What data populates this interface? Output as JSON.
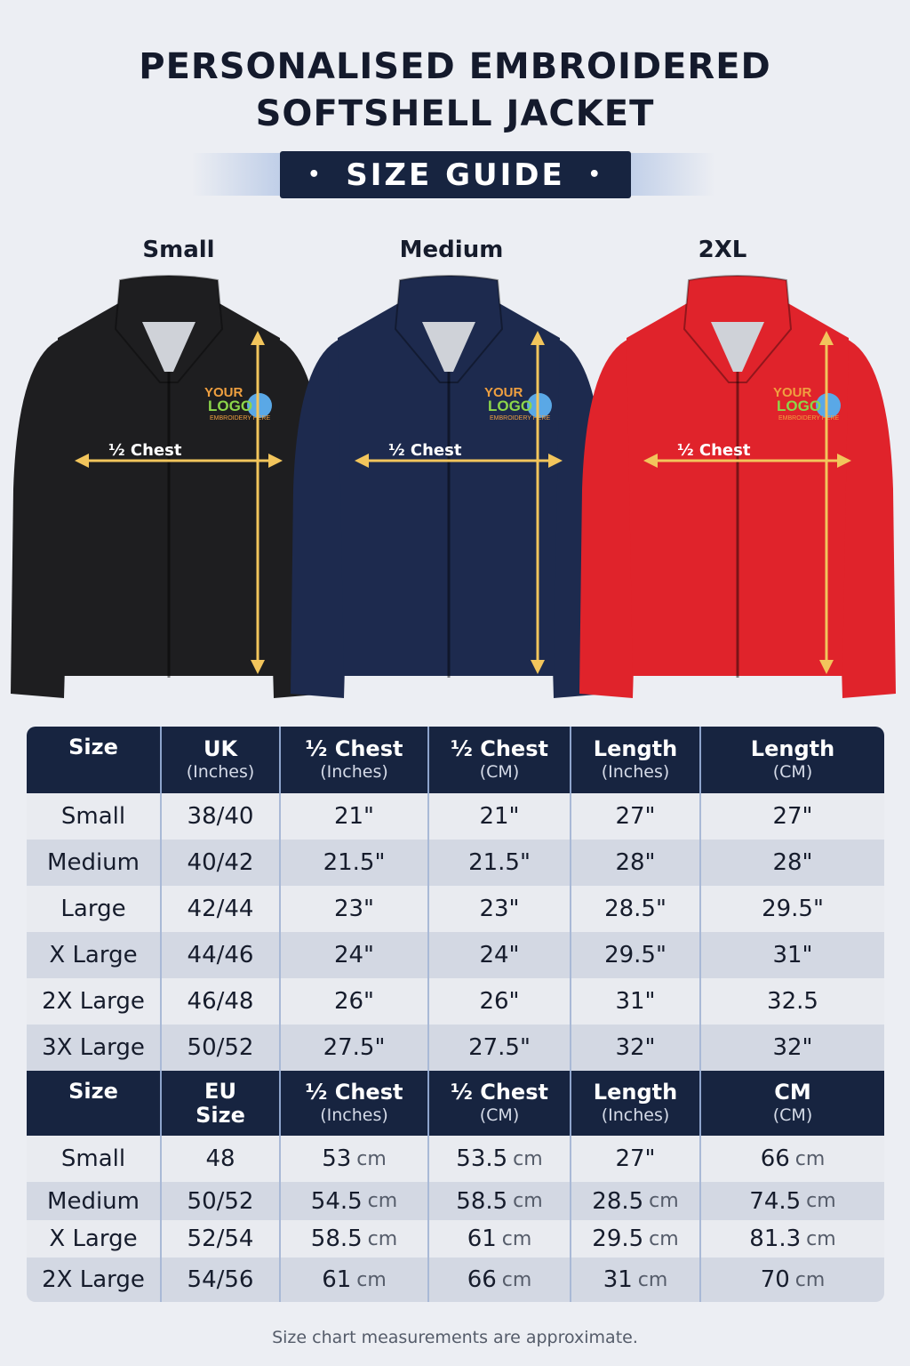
{
  "title": {
    "line1": "PERSONALISED EMBROIDERED",
    "line2": "SOFTSHELL JACKET"
  },
  "banner": {
    "label": "SIZE GUIDE",
    "dot": "•"
  },
  "jackets": [
    {
      "label": "Small",
      "color": "#1e1e20",
      "measure": "½ Chest"
    },
    {
      "label": "Medium",
      "color": "#1d2a4e",
      "measure": "½ Chest"
    },
    {
      "label": "2XL",
      "color": "#e0232b",
      "measure": "½ Chest"
    }
  ],
  "logo_text": "YOUR LOGO EMBROIDERY HERE",
  "colors": {
    "navy": "#172440",
    "arrow": "#f2c55c",
    "background": "#eceef3"
  },
  "uk_table": {
    "headers": [
      [
        "Size",
        ""
      ],
      [
        "UK",
        "(Inches)"
      ],
      [
        "½ Chest",
        "(Inches)"
      ],
      [
        "½ Chest",
        "(CM)"
      ],
      [
        "Length",
        "(Inches)"
      ],
      [
        "Length",
        "(CM)"
      ]
    ],
    "rows": [
      [
        "Small",
        "38/40",
        "21\"",
        "21\"",
        "27\"",
        "27\""
      ],
      [
        "Medium",
        "40/42",
        "21.5\"",
        "21.5\"",
        "28\"",
        "28\""
      ],
      [
        "Large",
        "42/44",
        "23\"",
        "23\"",
        "28.5\"",
        "29.5\""
      ],
      [
        "X Large",
        "44/46",
        "24\"",
        "24\"",
        "29.5\"",
        "31\""
      ],
      [
        "2X Large",
        "46/48",
        "26\"",
        "26\"",
        "31\"",
        "32.5"
      ],
      [
        "3X Large",
        "50/52",
        "27.5\"",
        "27.5\"",
        "32\"",
        "32\""
      ]
    ]
  },
  "eu_table": {
    "headers": [
      [
        "Size",
        ""
      ],
      [
        "EU",
        "Size"
      ],
      [
        "½ Chest",
        "(Inches)"
      ],
      [
        "½ Chest",
        "(CM)"
      ],
      [
        "Length",
        "(Inches)"
      ],
      [
        "CM",
        "(CM)"
      ]
    ],
    "rows": [
      [
        [
          "Small",
          ""
        ],
        [
          "48",
          ""
        ],
        [
          "53",
          "cm"
        ],
        [
          "53.5",
          "cm"
        ],
        [
          "27\"",
          ""
        ],
        [
          "66",
          "cm"
        ]
      ],
      [
        [
          "Medium",
          ""
        ],
        [
          "50/52",
          ""
        ],
        [
          "54.5",
          "cm"
        ],
        [
          "58.5",
          "cm"
        ],
        [
          "28.5",
          "cm"
        ],
        [
          "74.5",
          "cm"
        ]
      ],
      [
        [
          "X Large",
          ""
        ],
        [
          "52/54",
          ""
        ],
        [
          "58.5",
          "cm"
        ],
        [
          "61",
          "cm"
        ],
        [
          "29.5",
          "cm"
        ],
        [
          "81.3",
          "cm"
        ]
      ],
      [
        [
          "2X Large",
          ""
        ],
        [
          "54/56",
          ""
        ],
        [
          "61",
          "cm"
        ],
        [
          "66",
          "cm"
        ],
        [
          "31",
          "cm"
        ],
        [
          "70",
          "cm"
        ]
      ]
    ]
  },
  "footer": "Size chart measurements are approximate."
}
